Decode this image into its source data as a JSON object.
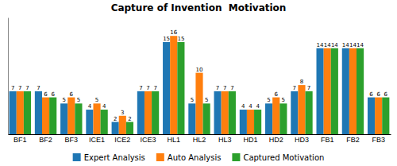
{
  "chart_data": {
    "type": "bar",
    "title": "Capture of Invention  Motivation",
    "categories": [
      "BF1",
      "BF2",
      "BF3",
      "ICE1",
      "ICE2",
      "ICE3",
      "HL1",
      "HL2",
      "HL3",
      "HD1",
      "HD2",
      "HD3",
      "FB1",
      "FB2",
      "FB3"
    ],
    "series": [
      {
        "name": "Expert Analysis",
        "values": [
          7,
          7,
          5,
          4,
          2,
          7,
          15,
          5,
          7,
          4,
          5,
          7,
          14,
          14,
          6
        ]
      },
      {
        "name": "Auto Analysis",
        "values": [
          7,
          6,
          6,
          5,
          3,
          7,
          16,
          10,
          7,
          4,
          6,
          8,
          14,
          14,
          6
        ]
      },
      {
        "name": "Captured Motivation",
        "values": [
          7,
          6,
          5,
          4,
          2,
          7,
          15,
          5,
          7,
          4,
          5,
          7,
          14,
          14,
          6
        ]
      }
    ],
    "ylim": [
      0,
      19
    ],
    "yticks": [],
    "grid": false,
    "legend": "bottom",
    "data_labels": true,
    "tick_labels": "x"
  }
}
